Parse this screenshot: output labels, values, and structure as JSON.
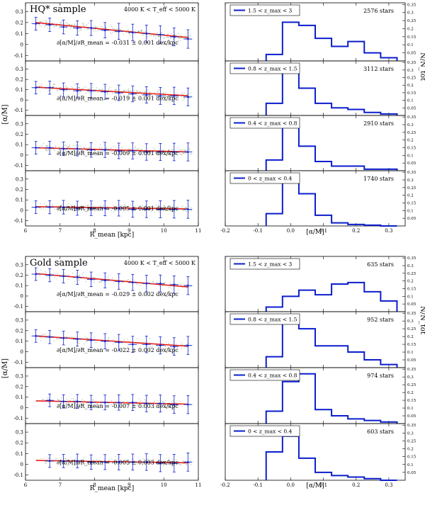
{
  "chart_data": [
    {
      "type": "scatter",
      "title": "HQ* sample",
      "temp_label": "4000 K < T_eff < 5000 K",
      "xlabel": "R_mean [kpc]",
      "ylabel": "[α/M]",
      "xlim": [
        6,
        11
      ],
      "ylim": [
        -0.15,
        0.38
      ],
      "x_ticks": [
        "6",
        "7",
        "8",
        "9",
        "10",
        "11"
      ],
      "y_ticks": [
        "-0.1",
        "0",
        "0.1",
        "0.2",
        "0.3"
      ],
      "panels": [
        {
          "label": "∂[α/M]/∂R_mean = -0.031 ± 0.001 dex/kpc",
          "gradient": -0.031,
          "intercept": 0.2,
          "x": [
            6.3,
            6.7,
            7.1,
            7.5,
            7.9,
            8.3,
            8.7,
            9.1,
            9.5,
            9.9,
            10.3,
            10.7
          ],
          "y": [
            0.19,
            0.18,
            0.16,
            0.15,
            0.15,
            0.13,
            0.12,
            0.11,
            0.1,
            0.09,
            0.07,
            0.05
          ]
        },
        {
          "label": "∂[α/M]/∂R_mean = -0.019 ± 0.001 dex/kpc",
          "gradient": -0.019,
          "intercept": 0.125,
          "x": [
            6.3,
            6.7,
            7.1,
            7.5,
            7.9,
            8.3,
            8.7,
            9.1,
            9.5,
            9.9,
            10.3,
            10.7
          ],
          "y": [
            0.12,
            0.12,
            0.1,
            0.09,
            0.09,
            0.08,
            0.07,
            0.06,
            0.05,
            0.04,
            0.04,
            0.03
          ]
        },
        {
          "label": "∂[α/M]/∂R_mean = -0.009 ± 0.001 dex/kpc",
          "gradient": -0.009,
          "intercept": 0.07,
          "x": [
            6.3,
            6.7,
            7.1,
            7.5,
            7.9,
            8.3,
            8.7,
            9.1,
            9.5,
            9.9,
            10.3,
            10.7
          ],
          "y": [
            0.07,
            0.07,
            0.06,
            0.06,
            0.05,
            0.05,
            0.04,
            0.04,
            0.03,
            0.03,
            0.03,
            0.03
          ]
        },
        {
          "label": "∂[α/M]/∂R_mean = -0.005 ± 0.001 dex/kpc",
          "gradient": -0.005,
          "intercept": 0.035,
          "x": [
            6.3,
            6.7,
            7.1,
            7.5,
            7.9,
            8.3,
            8.7,
            9.1,
            9.5,
            9.9,
            10.3,
            10.7
          ],
          "y": [
            0.03,
            0.03,
            0.03,
            0.02,
            0.02,
            0.02,
            0.02,
            0.01,
            0.01,
            0.01,
            0.01,
            0.01
          ]
        }
      ]
    },
    {
      "type": "bar",
      "xlabel": "[α/M]",
      "ylabel": "N/N_tot",
      "xlim": [
        -0.2,
        0.35
      ],
      "ylim": [
        0,
        0.36
      ],
      "x_ticks": [
        "-0.2",
        "-0.1",
        "0.0",
        "0.1",
        "0.2",
        "0.3"
      ],
      "y_ticks": [
        "0.05",
        "0.1",
        "0.15",
        "0.2",
        "0.25",
        "0.3",
        "0.35"
      ],
      "bin_edges": [
        -0.075,
        -0.025,
        0.025,
        0.075,
        0.125,
        0.175,
        0.225,
        0.275,
        0.325
      ],
      "panels": [
        {
          "legend": "1.5 < z_max < 3",
          "count": "2576 stars",
          "values": [
            0.04,
            0.24,
            0.22,
            0.14,
            0.09,
            0.12,
            0.05,
            0.02
          ]
        },
        {
          "legend": "0.8 < z_max < 1.5",
          "count": "3112 stars",
          "values": [
            0.08,
            0.33,
            0.18,
            0.08,
            0.05,
            0.04,
            0.02,
            0.01
          ]
        },
        {
          "legend": "0.4 < z_max < 0.8",
          "count": "2910 stars",
          "values": [
            0.07,
            0.34,
            0.16,
            0.06,
            0.03,
            0.03,
            0.01,
            0.01
          ]
        },
        {
          "legend": "0 < z_max < 0.4",
          "count": "1740 stars",
          "values": [
            0.08,
            0.31,
            0.21,
            0.07,
            0.02,
            0.01,
            0.005,
            0.0
          ]
        }
      ]
    },
    {
      "type": "scatter",
      "title": "Gold sample",
      "temp_label": "4000 K < T_eff < 5000 K",
      "xlabel": "R_mean [kpc]",
      "ylabel": "[α/M]",
      "xlim": [
        6,
        11
      ],
      "ylim": [
        -0.15,
        0.38
      ],
      "x_ticks": [
        "6",
        "7",
        "8",
        "9",
        "10",
        "11"
      ],
      "y_ticks": [
        "-0.1",
        "0",
        "0.1",
        "0.2",
        "0.3"
      ],
      "panels": [
        {
          "label": "∂[α/M]/∂R_mean = -0.029 ± 0.002 dex/kpc",
          "gradient": -0.029,
          "intercept": 0.215,
          "x": [
            6.3,
            6.7,
            7.1,
            7.5,
            7.9,
            8.3,
            8.7,
            9.1,
            9.5,
            9.9,
            10.3,
            10.7
          ],
          "y": [
            0.21,
            0.2,
            0.19,
            0.18,
            0.16,
            0.15,
            0.14,
            0.13,
            0.12,
            0.12,
            0.11,
            0.1
          ]
        },
        {
          "label": "∂[α/M]/∂R_mean = -0.022 ± 0.002 dex/kpc",
          "gradient": -0.022,
          "intercept": 0.15,
          "x": [
            6.3,
            6.7,
            7.1,
            7.5,
            7.9,
            8.3,
            8.7,
            9.1,
            9.5,
            9.9,
            10.3,
            10.7
          ],
          "y": [
            0.15,
            0.14,
            0.13,
            0.12,
            0.11,
            0.1,
            0.09,
            0.07,
            0.07,
            0.06,
            0.05,
            0.06
          ]
        },
        {
          "label": "∂[α/M]/∂R_mean = -0.007 ± 0.003 dex/kpc",
          "gradient": -0.007,
          "intercept": 0.065,
          "x": [
            6.7,
            7.1,
            7.5,
            7.9,
            8.3,
            8.7,
            9.1,
            9.5,
            9.9,
            10.3,
            10.7
          ],
          "y": [
            0.07,
            0.06,
            0.06,
            0.05,
            0.05,
            0.05,
            0.05,
            0.04,
            0.04,
            0.03,
            0.03
          ]
        },
        {
          "label": "∂[α/M]/∂R_mean = -0.005 ± 0.003 dex/kpc",
          "gradient": -0.005,
          "intercept": 0.035,
          "x": [
            6.7,
            7.1,
            7.5,
            7.9,
            8.3,
            8.7,
            9.1,
            9.5,
            9.9,
            10.3,
            10.7
          ],
          "y": [
            0.03,
            0.03,
            0.03,
            0.02,
            0.02,
            0.02,
            0.02,
            0.02,
            0.01,
            0.01,
            0.02
          ]
        }
      ]
    },
    {
      "type": "bar",
      "xlabel": "[α/M]",
      "ylabel": "N/N_tot",
      "xlim": [
        -0.2,
        0.35
      ],
      "ylim": [
        0,
        0.36
      ],
      "x_ticks": [
        "-0.2",
        "-0.1",
        "0.0",
        "0.1",
        "0.2",
        "0.3"
      ],
      "y_ticks": [
        "0.05",
        "0.1",
        "0.15",
        "0.2",
        "0.25",
        "0.3",
        "0.35"
      ],
      "bin_edges": [
        -0.075,
        -0.025,
        0.025,
        0.075,
        0.125,
        0.175,
        0.225,
        0.275,
        0.325
      ],
      "panels": [
        {
          "legend": "1.5 < z_max < 3",
          "count": "635 stars",
          "values": [
            0.03,
            0.1,
            0.14,
            0.11,
            0.18,
            0.19,
            0.13,
            0.07
          ]
        },
        {
          "legend": "0.8 < z_max < 1.5",
          "count": "952 stars",
          "values": [
            0.07,
            0.3,
            0.25,
            0.14,
            0.14,
            0.1,
            0.05,
            0.02
          ]
        },
        {
          "legend": "0.4 < z_max < 0.8",
          "count": "974 stars",
          "values": [
            0.08,
            0.27,
            0.32,
            0.09,
            0.05,
            0.03,
            0.02,
            0.01
          ]
        },
        {
          "legend": "0 < z_max < 0.4",
          "count": "603 stars",
          "values": [
            0.18,
            0.28,
            0.14,
            0.05,
            0.03,
            0.02,
            0.01,
            0.0
          ]
        }
      ]
    }
  ]
}
